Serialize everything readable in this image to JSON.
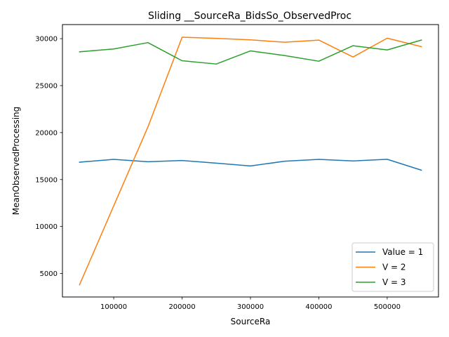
{
  "chart_data": {
    "type": "line",
    "title": "Sliding __SourceRa_BidsSo_ObservedProc",
    "xlabel": "SourceRa",
    "ylabel": "MeanObservedProcessing",
    "xlim": [
      25000,
      575000
    ],
    "ylim": [
      2500,
      31500
    ],
    "xticks": [
      100000,
      200000,
      300000,
      400000,
      500000
    ],
    "yticks": [
      5000,
      10000,
      15000,
      20000,
      25000,
      30000
    ],
    "grid": false,
    "legend_position": "bottom-right",
    "x": [
      50000,
      100000,
      150000,
      200000,
      250000,
      300000,
      350000,
      400000,
      450000,
      500000,
      550000
    ],
    "series": [
      {
        "name": "Value = 1",
        "color": "#1f77b4",
        "values": [
          16850,
          17150,
          16900,
          17030,
          16750,
          16450,
          16950,
          17150,
          16980,
          17160,
          16000
        ]
      },
      {
        "name": "V = 2",
        "color": "#ff7f0e",
        "values": [
          3800,
          12200,
          20600,
          30150,
          30030,
          29870,
          29620,
          29850,
          28050,
          30050,
          29150
        ]
      },
      {
        "name": "V = 3",
        "color": "#2ca02c",
        "values": [
          28600,
          28900,
          29580,
          27650,
          27300,
          28700,
          28200,
          27600,
          29250,
          28800,
          29850
        ]
      }
    ]
  }
}
